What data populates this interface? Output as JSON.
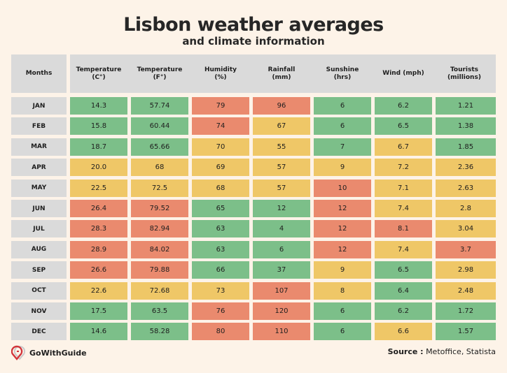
{
  "title": "Lisbon weather averages",
  "subtitle": "and climate information",
  "brand": "GoWithGuide",
  "source_label": "Source :",
  "source_value": "Metoffice, Statista",
  "colors": {
    "green": "#7cbf89",
    "yellow": "#efc767",
    "red": "#ea8a6e",
    "grey": "#dadada",
    "background": "#fdf3e8"
  },
  "chart_data": {
    "type": "table",
    "title": "Lisbon weather averages",
    "subtitle": "and climate information",
    "row_header": "Months",
    "columns": [
      "Temperature\n(C°)",
      "Temperature\n(F°)",
      "Humidity\n(%)",
      "Rainfall\n(mm)",
      "Sunshine\n(hrs)",
      "Wind (mph)",
      "Tourists\n(millions)"
    ],
    "rows": [
      {
        "month": "JAN",
        "values": [
          "14.3",
          "57.74",
          "79",
          "96",
          "6",
          "6.2",
          "1.21"
        ],
        "levels": [
          "green",
          "green",
          "red",
          "red",
          "green",
          "green",
          "green"
        ]
      },
      {
        "month": "FEB",
        "values": [
          "15.8",
          "60.44",
          "74",
          "67",
          "6",
          "6.5",
          "1.38"
        ],
        "levels": [
          "green",
          "green",
          "red",
          "yellow",
          "green",
          "green",
          "green"
        ]
      },
      {
        "month": "MAR",
        "values": [
          "18.7",
          "65.66",
          "70",
          "55",
          "7",
          "6.7",
          "1.85"
        ],
        "levels": [
          "green",
          "green",
          "yellow",
          "yellow",
          "green",
          "yellow",
          "green"
        ]
      },
      {
        "month": "APR",
        "values": [
          "20.0",
          "68",
          "69",
          "57",
          "9",
          "7.2",
          "2.36"
        ],
        "levels": [
          "yellow",
          "yellow",
          "yellow",
          "yellow",
          "yellow",
          "yellow",
          "yellow"
        ]
      },
      {
        "month": "MAY",
        "values": [
          "22.5",
          "72.5",
          "68",
          "57",
          "10",
          "7.1",
          "2.63"
        ],
        "levels": [
          "yellow",
          "yellow",
          "yellow",
          "yellow",
          "red",
          "yellow",
          "yellow"
        ]
      },
      {
        "month": "JUN",
        "values": [
          "26.4",
          "79.52",
          "65",
          "12",
          "12",
          "7.4",
          "2.8"
        ],
        "levels": [
          "red",
          "red",
          "green",
          "green",
          "red",
          "yellow",
          "yellow"
        ]
      },
      {
        "month": "JUL",
        "values": [
          "28.3",
          "82.94",
          "63",
          "4",
          "12",
          "8.1",
          "3.04"
        ],
        "levels": [
          "red",
          "red",
          "green",
          "green",
          "red",
          "red",
          "yellow"
        ]
      },
      {
        "month": "AUG",
        "values": [
          "28.9",
          "84.02",
          "63",
          "6",
          "12",
          "7.4",
          "3.7"
        ],
        "levels": [
          "red",
          "red",
          "green",
          "green",
          "red",
          "yellow",
          "red"
        ]
      },
      {
        "month": "SEP",
        "values": [
          "26.6",
          "79.88",
          "66",
          "37",
          "9",
          "6.5",
          "2.98"
        ],
        "levels": [
          "red",
          "red",
          "green",
          "green",
          "yellow",
          "green",
          "yellow"
        ]
      },
      {
        "month": "OCT",
        "values": [
          "22.6",
          "72.68",
          "73",
          "107",
          "8",
          "6.4",
          "2.48"
        ],
        "levels": [
          "yellow",
          "yellow",
          "yellow",
          "red",
          "yellow",
          "green",
          "yellow"
        ]
      },
      {
        "month": "NOV",
        "values": [
          "17.5",
          "63.5",
          "76",
          "120",
          "6",
          "6.2",
          "1.72"
        ],
        "levels": [
          "green",
          "green",
          "red",
          "red",
          "green",
          "green",
          "green"
        ]
      },
      {
        "month": "DEC",
        "values": [
          "14.6",
          "58.28",
          "80",
          "110",
          "6",
          "6.6",
          "1.57"
        ],
        "levels": [
          "green",
          "green",
          "red",
          "red",
          "green",
          "yellow",
          "green"
        ]
      }
    ]
  }
}
